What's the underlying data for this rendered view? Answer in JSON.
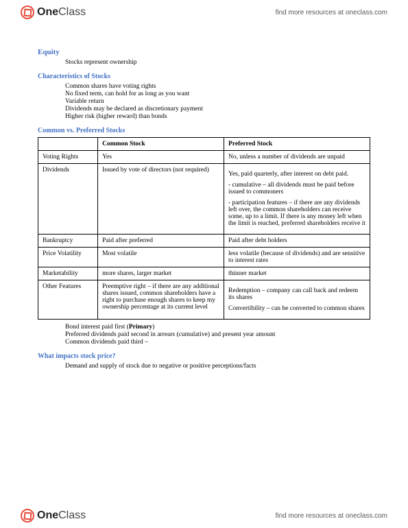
{
  "brand": {
    "prefix": "One",
    "suffix": "Class"
  },
  "header_link": "find more resources at oneclass.com",
  "footer_link": "find more resources at oneclass.com",
  "equity": {
    "title": "Equity",
    "intro": "Stocks represent ownership"
  },
  "characteristics": {
    "title": "Characteristics of Stocks",
    "items": [
      "Common shares have voting rights",
      "No fixed term, can hold for as long as you want",
      "Variable return",
      "Dividends may be declared as discretionary payment",
      "Higher risk (higher reward) than bonds"
    ]
  },
  "comparison": {
    "title": "Common vs. Preferred Stocks",
    "headers": [
      "",
      "Common Stock",
      "Preferred Stock"
    ],
    "rows": [
      {
        "label": "Voting Rights",
        "common": "Yes",
        "preferred": "No, unless a number of dividends are unpaid"
      },
      {
        "label": "Dividends",
        "common": "Issued by vote of directors (not required)",
        "preferred_paras": [
          "Yes, paid quarterly, after interest on debt paid.",
          "- cumulative – all dividends must be paid before issued to commoners",
          "- participation features – if there are any dividends left over, the common shareholders can receive some, up to a limit. If there is any money left when the limit is reached, preferred shareholders receive it"
        ]
      },
      {
        "label": "Bankruptcy",
        "common": "Paid after preferred",
        "preferred": "Paid after debt holders"
      },
      {
        "label": "Price Volatility",
        "common": "Most volatile",
        "preferred": "less volatile (because of dividends) and are sensitive to interest rates"
      },
      {
        "label": "Marketability",
        "common": "more shares, larger market",
        "preferred": "thinner market"
      },
      {
        "label": "Other Features",
        "common": "Preemptive right – if there are any additional shares issued, common shareholders have a right to purchase enough shares to keep my ownership percentage at its current level",
        "preferred_paras": [
          "Redemption – company can call back and redeem its shares",
          "Convertibility – can be converted to common shares"
        ]
      }
    ]
  },
  "payment_order": {
    "line1_pre": "Bond interest paid first (",
    "line1_bold": "Primary",
    "line1_post": ")",
    "line2": "Preferred dividends paid second in arrears (cumulative) and present year amount",
    "line3": "Common dividends paid third –"
  },
  "impacts": {
    "title": "What impacts stock price?",
    "text": "Demand and supply of stock due to negative or positive perceptions/facts"
  }
}
